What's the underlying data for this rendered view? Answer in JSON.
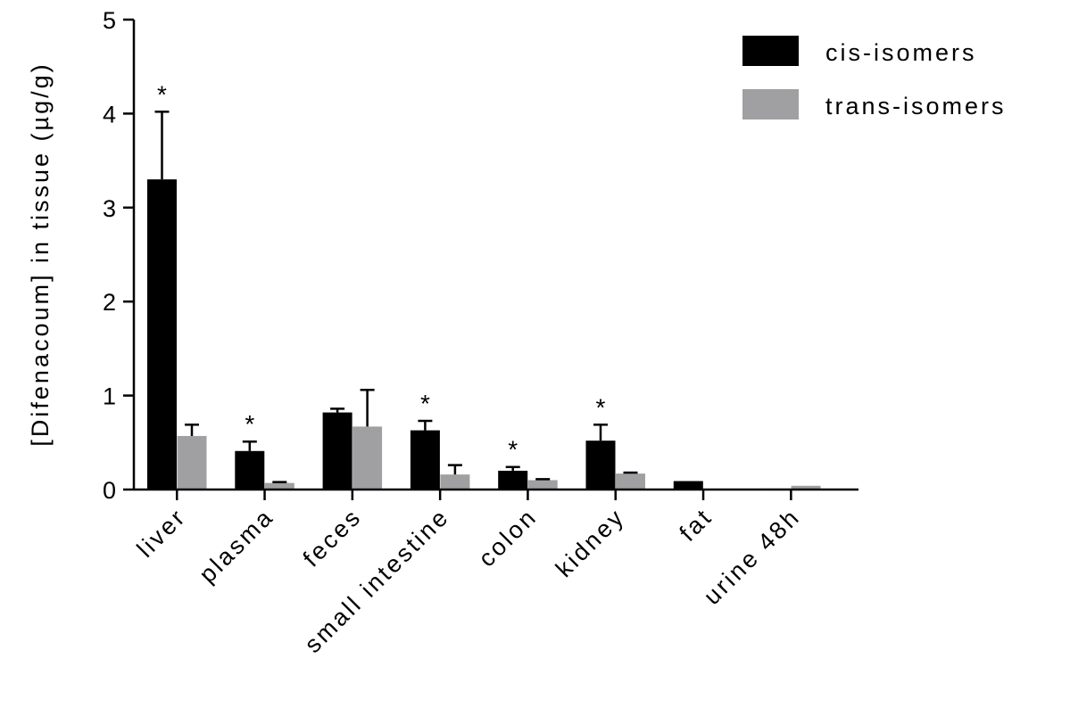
{
  "chart_data": {
    "type": "bar",
    "title": "",
    "xlabel": "",
    "ylabel": "[Difenacoum] in tissue (µg/g)",
    "ylim": [
      0,
      5
    ],
    "yticks": [
      "0",
      "1",
      "2",
      "3",
      "4",
      "5"
    ],
    "categories": [
      "liver",
      "plasma",
      "feces",
      "small intestine",
      "colon",
      "kidney",
      "fat",
      "urine 48h"
    ],
    "series": [
      {
        "name": "cis-isomers",
        "color": "#000000",
        "values": [
          3.3,
          0.41,
          0.82,
          0.63,
          0.2,
          0.52,
          0.09,
          0.01
        ],
        "errors": [
          0.72,
          0.1,
          0.04,
          0.1,
          0.04,
          0.17,
          0.0,
          0.0
        ]
      },
      {
        "name": "trans-isomers",
        "color": "#a0a0a2",
        "values": [
          0.57,
          0.07,
          0.67,
          0.16,
          0.1,
          0.17,
          0.0,
          0.04
        ],
        "errors": [
          0.12,
          0.01,
          0.39,
          0.1,
          0.01,
          0.01,
          0.0,
          0.0
        ]
      }
    ],
    "significance": [
      "*",
      "*",
      "",
      "*",
      "*",
      "*",
      "",
      ""
    ],
    "grid": false,
    "legend_position": "top-right"
  }
}
